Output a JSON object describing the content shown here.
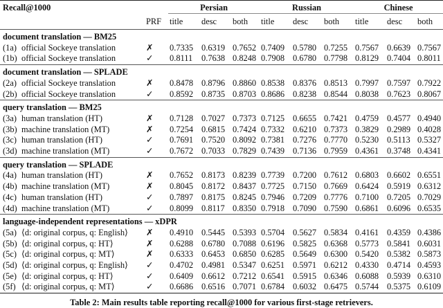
{
  "header": {
    "metric": "Recall@1000",
    "prf": "PRF",
    "languages": [
      "Persian",
      "Russian",
      "Chinese"
    ],
    "subcols": [
      "title",
      "desc",
      "both"
    ]
  },
  "sections": [
    {
      "title": "document translation — BM25",
      "rows": [
        {
          "id": "(1a)",
          "label": "official Sockeye translation",
          "prf": "✗",
          "values": [
            "0.7335",
            "0.6319",
            "0.7652",
            "0.7409",
            "0.5780",
            "0.7255",
            "0.7567",
            "0.6639",
            "0.7567"
          ]
        },
        {
          "id": "(1b)",
          "label": "official Sockeye translation",
          "prf": "✓",
          "values": [
            "0.8111",
            "0.7638",
            "0.8248",
            "0.7908",
            "0.6780",
            "0.7798",
            "0.8129",
            "0.7404",
            "0.8011"
          ]
        }
      ]
    },
    {
      "title": "document translation — SPLADE",
      "rows": [
        {
          "id": "(2a)",
          "label": "official Sockeye translation",
          "prf": "✗",
          "values": [
            "0.8478",
            "0.8796",
            "0.8860",
            "0.8538",
            "0.8376",
            "0.8513",
            "0.7997",
            "0.7597",
            "0.7922"
          ]
        },
        {
          "id": "(2b)",
          "label": "official Sockeye translation",
          "prf": "✓",
          "values": [
            "0.8592",
            "0.8735",
            "0.8703",
            "0.8686",
            "0.8238",
            "0.8544",
            "0.8038",
            "0.7623",
            "0.8067"
          ]
        }
      ]
    },
    {
      "title": "query translation — BM25",
      "rows": [
        {
          "id": "(3a)",
          "label": "human translation (HT)",
          "prf": "✗",
          "values": [
            "0.7128",
            "0.7027",
            "0.7373",
            "0.7125",
            "0.6655",
            "0.7421",
            "0.4759",
            "0.4577",
            "0.4940"
          ]
        },
        {
          "id": "(3b)",
          "label": "machine translation (MT)",
          "prf": "✗",
          "values": [
            "0.7254",
            "0.6815",
            "0.7424",
            "0.7332",
            "0.6210",
            "0.7373",
            "0.3829",
            "0.2989",
            "0.4028"
          ]
        },
        {
          "id": "(3c)",
          "label": "human translation (HT)",
          "prf": "✓",
          "values": [
            "0.7691",
            "0.7520",
            "0.8092",
            "0.7381",
            "0.7276",
            "0.7770",
            "0.5230",
            "0.5113",
            "0.5327"
          ]
        },
        {
          "id": "(3d)",
          "label": "machine translation (MT)",
          "prf": "✓",
          "values": [
            "0.7672",
            "0.7033",
            "0.7829",
            "0.7439",
            "0.7136",
            "0.7959",
            "0.4361",
            "0.3748",
            "0.4341"
          ]
        }
      ]
    },
    {
      "title": "query translation — SPLADE",
      "rows": [
        {
          "id": "(4a)",
          "label": "human translation (HT)",
          "prf": "✗",
          "values": [
            "0.7652",
            "0.8173",
            "0.8239",
            "0.7739",
            "0.7200",
            "0.7612",
            "0.6803",
            "0.6602",
            "0.6551"
          ]
        },
        {
          "id": "(4b)",
          "label": "machine translation (MT)",
          "prf": "✗",
          "values": [
            "0.8045",
            "0.8172",
            "0.8437",
            "0.7725",
            "0.7150",
            "0.7669",
            "0.6424",
            "0.5919",
            "0.6312"
          ]
        },
        {
          "id": "(4c)",
          "label": "human translation (HT)",
          "prf": "✓",
          "values": [
            "0.7897",
            "0.8175",
            "0.8245",
            "0.7946",
            "0.7209",
            "0.7776",
            "0.7100",
            "0.7205",
            "0.7029"
          ]
        },
        {
          "id": "(4d)",
          "label": "machine translation (MT)",
          "prf": "✓",
          "values": [
            "0.8099",
            "0.8117",
            "0.8350",
            "0.7918",
            "0.7090",
            "0.7590",
            "0.6861",
            "0.6096",
            "0.6535"
          ]
        }
      ]
    },
    {
      "title": "language-independent representations — xDPR",
      "rows": [
        {
          "id": "(5a)",
          "label": "⟨d: original corpus, q: English⟩",
          "prf": "✗",
          "values": [
            "0.4910",
            "0.5445",
            "0.5393",
            "0.5704",
            "0.5627",
            "0.5834",
            "0.4161",
            "0.4359",
            "0.4386"
          ]
        },
        {
          "id": "(5b)",
          "label": "⟨d: original corpus, q: HT⟩",
          "prf": "✗",
          "values": [
            "0.6288",
            "0.6780",
            "0.7088",
            "0.6196",
            "0.5825",
            "0.6368",
            "0.5773",
            "0.5841",
            "0.6031"
          ]
        },
        {
          "id": "(5c)",
          "label": "⟨d: original corpus, q: MT⟩",
          "prf": "✗",
          "values": [
            "0.6333",
            "0.6453",
            "0.6850",
            "0.6285",
            "0.5649",
            "0.6300",
            "0.5420",
            "0.5382",
            "0.5873"
          ]
        },
        {
          "id": "(5d)",
          "label": "⟨d: original corpus, q: English⟩",
          "prf": "✓",
          "values": [
            "0.4702",
            "0.4981",
            "0.5347",
            "0.6251",
            "0.5971",
            "0.6212",
            "0.4330",
            "0.4714",
            "0.4593"
          ]
        },
        {
          "id": "(5e)",
          "label": "⟨d: original corpus, q: HT⟩",
          "prf": "✓",
          "values": [
            "0.6409",
            "0.6612",
            "0.7212",
            "0.6541",
            "0.5915",
            "0.6346",
            "0.6088",
            "0.5939",
            "0.6310"
          ]
        },
        {
          "id": "(5f)",
          "label": "⟨d: original corpus, q: MT⟩",
          "prf": "✓",
          "values": [
            "0.6686",
            "0.6516",
            "0.7071",
            "0.6784",
            "0.6032",
            "0.6475",
            "0.5744",
            "0.5375",
            "0.6109"
          ]
        }
      ]
    }
  ],
  "caption": "Table 2: Main results table reporting recall@1000 for various first-stage retrievers."
}
